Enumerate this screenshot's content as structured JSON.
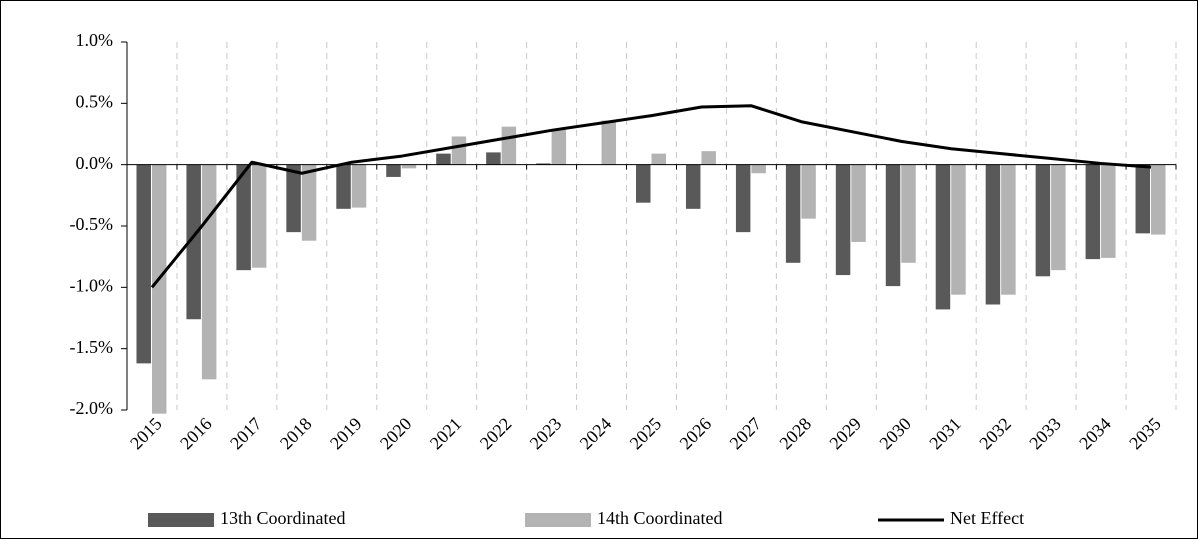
{
  "chart_data": {
    "type": "bar",
    "categories": [
      "2015",
      "2016",
      "2017",
      "2018",
      "2019",
      "2020",
      "2021",
      "2022",
      "2023",
      "2024",
      "2025",
      "2026",
      "2027",
      "2028",
      "2029",
      "2030",
      "2031",
      "2032",
      "2033",
      "2034",
      "2035"
    ],
    "series": [
      {
        "name": "13th Coordinated",
        "type": "bar",
        "color": "#595959",
        "values": [
          -1.62,
          -1.26,
          -0.86,
          -0.55,
          -0.36,
          -0.1,
          0.09,
          0.1,
          0.01,
          0.0,
          -0.31,
          -0.36,
          -0.55,
          -0.8,
          -0.9,
          -0.99,
          -1.18,
          -1.14,
          -0.91,
          -0.77,
          -0.56
        ]
      },
      {
        "name": "14th Coordinated",
        "type": "bar",
        "color": "#b3b3b3",
        "values": [
          -2.03,
          -1.75,
          -0.84,
          -0.62,
          -0.35,
          -0.03,
          0.23,
          0.31,
          0.29,
          0.36,
          0.09,
          0.11,
          -0.07,
          -0.44,
          -0.63,
          -0.8,
          -1.06,
          -1.06,
          -0.86,
          -0.76,
          -0.57
        ]
      },
      {
        "name": "Net Effect",
        "type": "line",
        "color": "#000000",
        "values": [
          -1.0,
          -0.5,
          0.02,
          -0.07,
          0.02,
          0.07,
          0.14,
          0.21,
          0.28,
          0.34,
          0.4,
          0.47,
          0.48,
          0.35,
          0.27,
          0.19,
          0.13,
          0.09,
          0.05,
          0.01,
          -0.02
        ]
      }
    ],
    "ylim": [
      -2.0,
      1.0
    ],
    "yticks": [
      {
        "value": -2.0,
        "label": "-2.0%"
      },
      {
        "value": -1.5,
        "label": "-1.5%"
      },
      {
        "value": -1.0,
        "label": "-1.0%"
      },
      {
        "value": -0.5,
        "label": "-0.5%"
      },
      {
        "value": 0.0,
        "label": "0.0%"
      },
      {
        "value": 0.5,
        "label": "0.5%"
      },
      {
        "value": 1.0,
        "label": "1.0%"
      }
    ],
    "grid": false,
    "category_gridlines": true,
    "legend": "bottom"
  }
}
